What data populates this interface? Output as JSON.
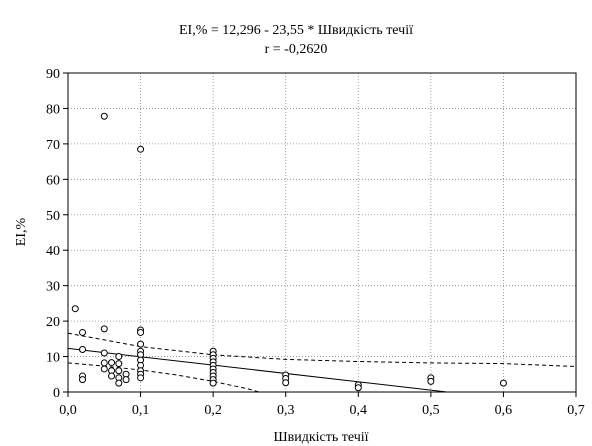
{
  "chart_data": {
    "type": "scatter",
    "title": "EI,% = 12,296 - 23,55  * Швидкість течії",
    "subtitle": "r = -0,2620",
    "xlabel": "Швидкість течії",
    "ylabel": "EI,%",
    "xlim": [
      0.0,
      0.7
    ],
    "ylim": [
      0,
      90
    ],
    "x_ticks": [
      0.0,
      0.1,
      0.2,
      0.3,
      0.4,
      0.5,
      0.6,
      0.7
    ],
    "x_tick_labels": [
      "0,0",
      "0,1",
      "0,2",
      "0,3",
      "0,4",
      "0,5",
      "0,6",
      "0,7"
    ],
    "y_ticks": [
      0,
      10,
      20,
      30,
      40,
      50,
      60,
      70,
      80,
      90
    ],
    "y_tick_labels": [
      "0",
      "10",
      "20",
      "30",
      "40",
      "50",
      "60",
      "70",
      "80",
      "90"
    ],
    "grid": true,
    "legend": "none",
    "points": [
      [
        0.01,
        23.5
      ],
      [
        0.02,
        16.8
      ],
      [
        0.02,
        12.0
      ],
      [
        0.02,
        4.5
      ],
      [
        0.02,
        3.5
      ],
      [
        0.05,
        77.8
      ],
      [
        0.05,
        17.8
      ],
      [
        0.05,
        11.0
      ],
      [
        0.05,
        8.2
      ],
      [
        0.05,
        6.5
      ],
      [
        0.06,
        8.3
      ],
      [
        0.06,
        6.0
      ],
      [
        0.06,
        4.5
      ],
      [
        0.07,
        10.0
      ],
      [
        0.07,
        8.0
      ],
      [
        0.07,
        6.0
      ],
      [
        0.07,
        4.0
      ],
      [
        0.07,
        2.5
      ],
      [
        0.08,
        5.0
      ],
      [
        0.08,
        3.5
      ],
      [
        0.1,
        68.5
      ],
      [
        0.1,
        17.5
      ],
      [
        0.1,
        16.8
      ],
      [
        0.1,
        13.5
      ],
      [
        0.1,
        11.5
      ],
      [
        0.1,
        10.5
      ],
      [
        0.1,
        9.0
      ],
      [
        0.1,
        7.5
      ],
      [
        0.1,
        6.0
      ],
      [
        0.1,
        5.0
      ],
      [
        0.1,
        4.0
      ],
      [
        0.2,
        11.5
      ],
      [
        0.2,
        10.5
      ],
      [
        0.2,
        9.5
      ],
      [
        0.2,
        8.5
      ],
      [
        0.2,
        7.5
      ],
      [
        0.2,
        6.5
      ],
      [
        0.2,
        5.5
      ],
      [
        0.2,
        4.5
      ],
      [
        0.2,
        3.5
      ],
      [
        0.2,
        2.5
      ],
      [
        0.3,
        4.8
      ],
      [
        0.3,
        3.8
      ],
      [
        0.3,
        2.6
      ],
      [
        0.4,
        2.0
      ],
      [
        0.4,
        1.2
      ],
      [
        0.5,
        4.0
      ],
      [
        0.5,
        3.0
      ],
      [
        0.6,
        2.5
      ]
    ],
    "regression": {
      "intercept": 12.296,
      "slope": -23.55
    },
    "confidence_upper": [
      [
        0.0,
        16.6
      ],
      [
        0.1,
        12.8
      ],
      [
        0.2,
        10.5
      ],
      [
        0.3,
        9.2
      ],
      [
        0.4,
        8.6
      ],
      [
        0.5,
        8.2
      ],
      [
        0.6,
        8.0
      ],
      [
        0.7,
        7.2
      ]
    ],
    "confidence_lower": [
      [
        0.0,
        8.2
      ],
      [
        0.05,
        7.3
      ],
      [
        0.1,
        6.2
      ],
      [
        0.15,
        4.8
      ],
      [
        0.2,
        3.0
      ],
      [
        0.25,
        0.8
      ],
      [
        0.28,
        -1.0
      ]
    ]
  }
}
